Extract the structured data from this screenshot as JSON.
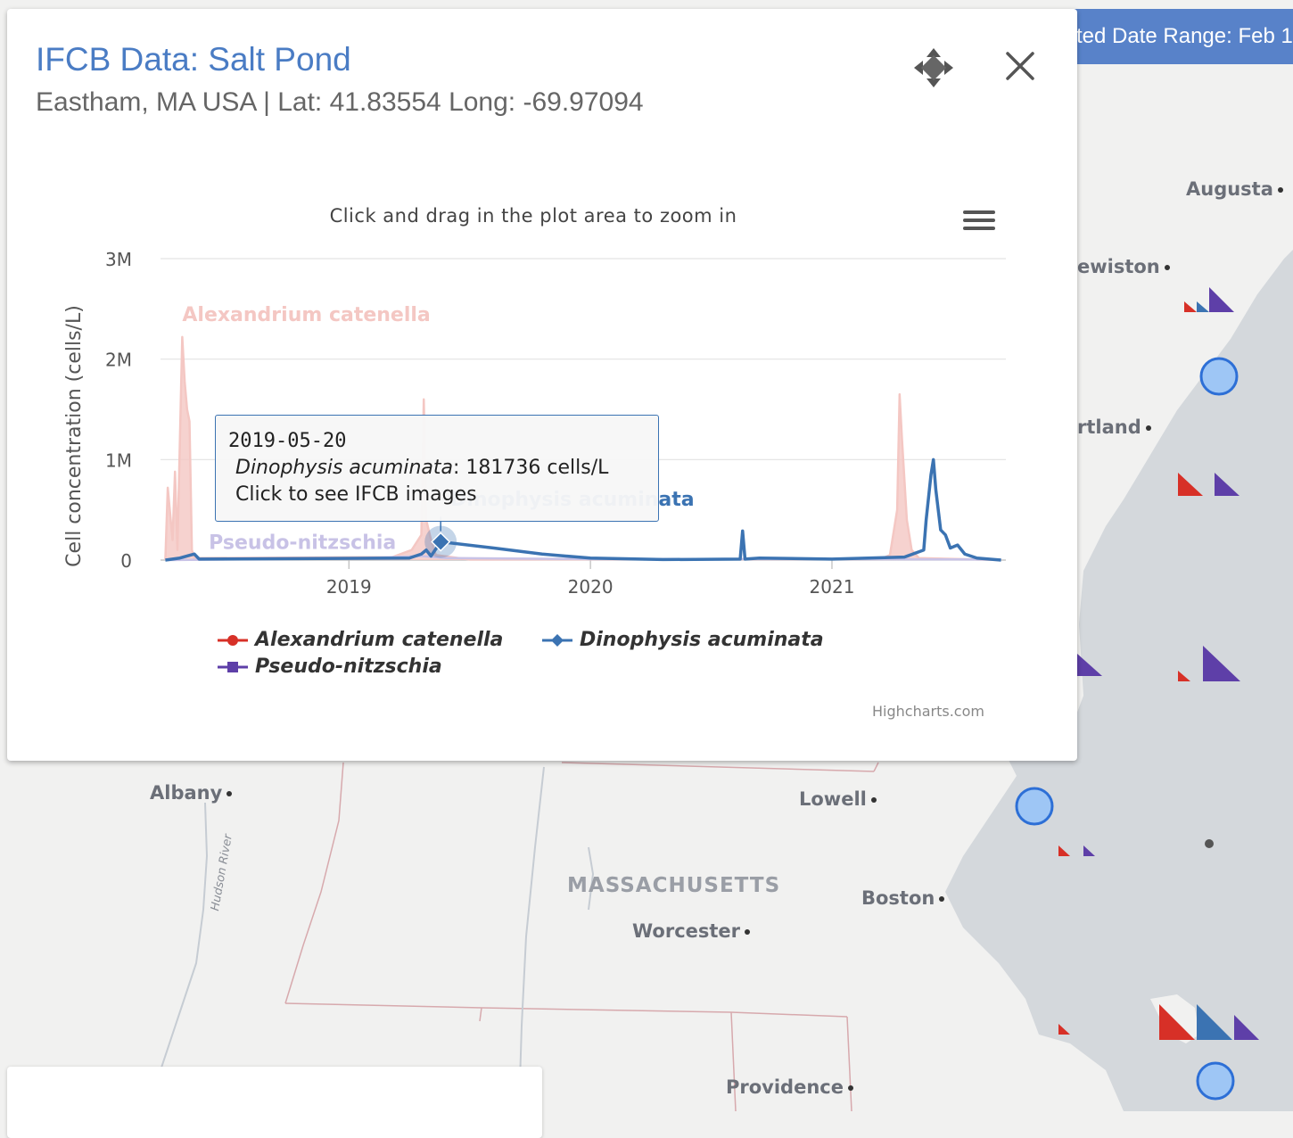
{
  "popup": {
    "title": "IFCB Data: Salt Pond",
    "subtitle": "Eastham, MA USA | Lat: 41.83554 Long: -69.97094"
  },
  "banner": {
    "text": "ted Date Range: Feb 1"
  },
  "chart_hint": "Click and drag in the plot area to zoom in",
  "credits": "Highcharts.com",
  "chart_data": {
    "type": "line",
    "title": "",
    "xlabel": "",
    "ylabel": "Cell concentration (cells/L)",
    "y_ticks": [
      "0",
      "1M",
      "2M",
      "3M"
    ],
    "ylim": [
      0,
      3000000
    ],
    "x_ticks": [
      "2019",
      "2020",
      "2021"
    ],
    "xlim": [
      2018.22,
      2021.72
    ],
    "grid": true,
    "legend_position": "bottom",
    "series": [
      {
        "name": "Alexandrium catenella",
        "color": "#f4c7c3",
        "legend_color": "#d73027",
        "marker": "circle",
        "points": [
          [
            2018.24,
            0
          ],
          [
            2018.25,
            720000
          ],
          [
            2018.27,
            200000
          ],
          [
            2018.28,
            880000
          ],
          [
            2018.29,
            100000
          ],
          [
            2018.31,
            2220000
          ],
          [
            2018.32,
            1780000
          ],
          [
            2018.33,
            1500000
          ],
          [
            2018.34,
            1380000
          ],
          [
            2018.35,
            100000
          ],
          [
            2018.36,
            20000
          ],
          [
            2019.18,
            30000
          ],
          [
            2019.26,
            100000
          ],
          [
            2019.3,
            250000
          ],
          [
            2019.31,
            1600000
          ],
          [
            2019.32,
            400000
          ],
          [
            2019.34,
            200000
          ],
          [
            2019.36,
            50000
          ],
          [
            2019.5,
            5000
          ],
          [
            2021.2,
            10000
          ],
          [
            2021.24,
            50000
          ],
          [
            2021.27,
            500000
          ],
          [
            2021.28,
            1650000
          ],
          [
            2021.29,
            1200000
          ],
          [
            2021.3,
            800000
          ],
          [
            2021.31,
            400000
          ],
          [
            2021.33,
            100000
          ],
          [
            2021.36,
            20000
          ],
          [
            2021.7,
            0
          ]
        ],
        "label": "Alexandrium catenella"
      },
      {
        "name": "Pseudo-nitzschia",
        "color": "#c8c2e6",
        "legend_color": "#5e3fa8",
        "marker": "square",
        "points": [
          [
            2018.24,
            0
          ],
          [
            2019.0,
            15000
          ],
          [
            2019.3,
            40000
          ],
          [
            2019.4,
            20000
          ],
          [
            2020.0,
            10000
          ],
          [
            2021.0,
            10000
          ],
          [
            2021.7,
            5000
          ]
        ],
        "label": "Pseudo-nitzschia"
      },
      {
        "name": "Dinophysis acuminata",
        "color": "#3b73b2",
        "legend_color": "#3b73b2",
        "marker": "diamond",
        "points": [
          [
            2018.24,
            0
          ],
          [
            2018.3,
            20000
          ],
          [
            2018.33,
            40000
          ],
          [
            2018.36,
            60000
          ],
          [
            2018.38,
            10000
          ],
          [
            2019.25,
            20000
          ],
          [
            2019.3,
            60000
          ],
          [
            2019.32,
            100000
          ],
          [
            2019.34,
            40000
          ],
          [
            2019.38,
            181736
          ],
          [
            2019.6,
            120000
          ],
          [
            2019.8,
            60000
          ],
          [
            2020.0,
            20000
          ],
          [
            2020.3,
            5000
          ],
          [
            2020.62,
            10000
          ],
          [
            2020.63,
            290000
          ],
          [
            2020.64,
            10000
          ],
          [
            2020.7,
            20000
          ],
          [
            2021.0,
            10000
          ],
          [
            2021.3,
            30000
          ],
          [
            2021.38,
            100000
          ],
          [
            2021.39,
            400000
          ],
          [
            2021.41,
            850000
          ],
          [
            2021.42,
            1000000
          ],
          [
            2021.43,
            700000
          ],
          [
            2021.45,
            300000
          ],
          [
            2021.47,
            250000
          ],
          [
            2021.49,
            120000
          ],
          [
            2021.52,
            150000
          ],
          [
            2021.55,
            60000
          ],
          [
            2021.6,
            20000
          ],
          [
            2021.7,
            0
          ]
        ],
        "label": "Dinophysis acuminata"
      }
    ]
  },
  "tooltip": {
    "date": "2019-05-20",
    "species": "Dinophysis acuminata",
    "value_text": ": 181736 cells/L",
    "action": "Click to see IFCB images"
  },
  "legend": {
    "items": [
      "Alexandrium catenella",
      "Dinophysis acuminata",
      "Pseudo-nitzschia"
    ]
  },
  "map": {
    "labels": {
      "augusta": "Augusta",
      "lewiston": "ewiston",
      "portland": "rtland",
      "albany": "Albany",
      "lowell": "Lowell",
      "boston": "Boston",
      "worcester": "Worcester",
      "providence": "Providence",
      "massachusetts": "MASSACHUSETTS",
      "hudson": "Hudson River"
    },
    "colors": {
      "land": "#f1f1f0",
      "water": "#d4d8dc",
      "marker": "#9ec6f5",
      "marker_border": "#2d6fd6",
      "alexandrium": "#d73027",
      "dinophysis": "#3b73b2",
      "pseudo": "#5e3fa8"
    }
  }
}
